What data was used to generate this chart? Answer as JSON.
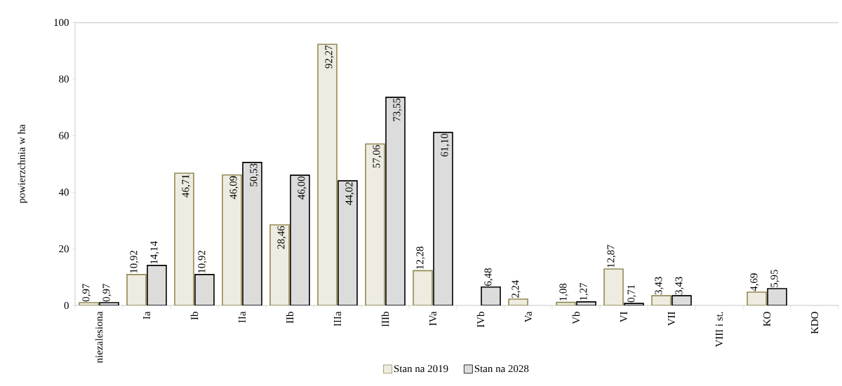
{
  "chart_data": {
    "type": "bar",
    "ylabel": "powierzchnia w ha",
    "categories": [
      "niezalesiona",
      "Ia",
      "Ib",
      "IIa",
      "IIb",
      "IIIa",
      "IIIb",
      "IVa",
      "IVb",
      "Va",
      "Vb",
      "VI",
      "VII",
      "VIII i st.",
      "KO",
      "KDO"
    ],
    "series": [
      {
        "name": "Stan na 2019",
        "color": "#eeece1",
        "values": [
          0.97,
          10.92,
          46.71,
          46.09,
          28.46,
          92.27,
          57.06,
          12.28,
          null,
          2.24,
          1.08,
          12.87,
          3.43,
          null,
          4.69,
          null
        ],
        "value_labels": [
          "0,97",
          "10,92",
          "46,71",
          "46,09",
          "28,46",
          "92,27",
          "57,06",
          "12,28",
          null,
          "2,24",
          "1,08",
          "12,87",
          "3,43",
          null,
          "4,69",
          null
        ]
      },
      {
        "name": "Stan na 2028",
        "color": "#dcdcdc",
        "values": [
          0.97,
          14.14,
          10.92,
          50.53,
          46.0,
          44.02,
          73.55,
          61.1,
          6.48,
          null,
          1.27,
          0.71,
          3.43,
          null,
          5.95,
          null
        ],
        "value_labels": [
          "0,97",
          "14,14",
          "10,92",
          "50,53",
          "46,00",
          "44,02",
          "73,55",
          "61,10",
          "6,48",
          null,
          "1,27",
          "0,71",
          "3,43",
          null,
          "5,95",
          null
        ]
      }
    ],
    "ylim": [
      0,
      100
    ],
    "yticks": [
      0,
      20,
      40,
      60,
      80,
      100
    ],
    "grid": false,
    "legend": "bottom"
  }
}
